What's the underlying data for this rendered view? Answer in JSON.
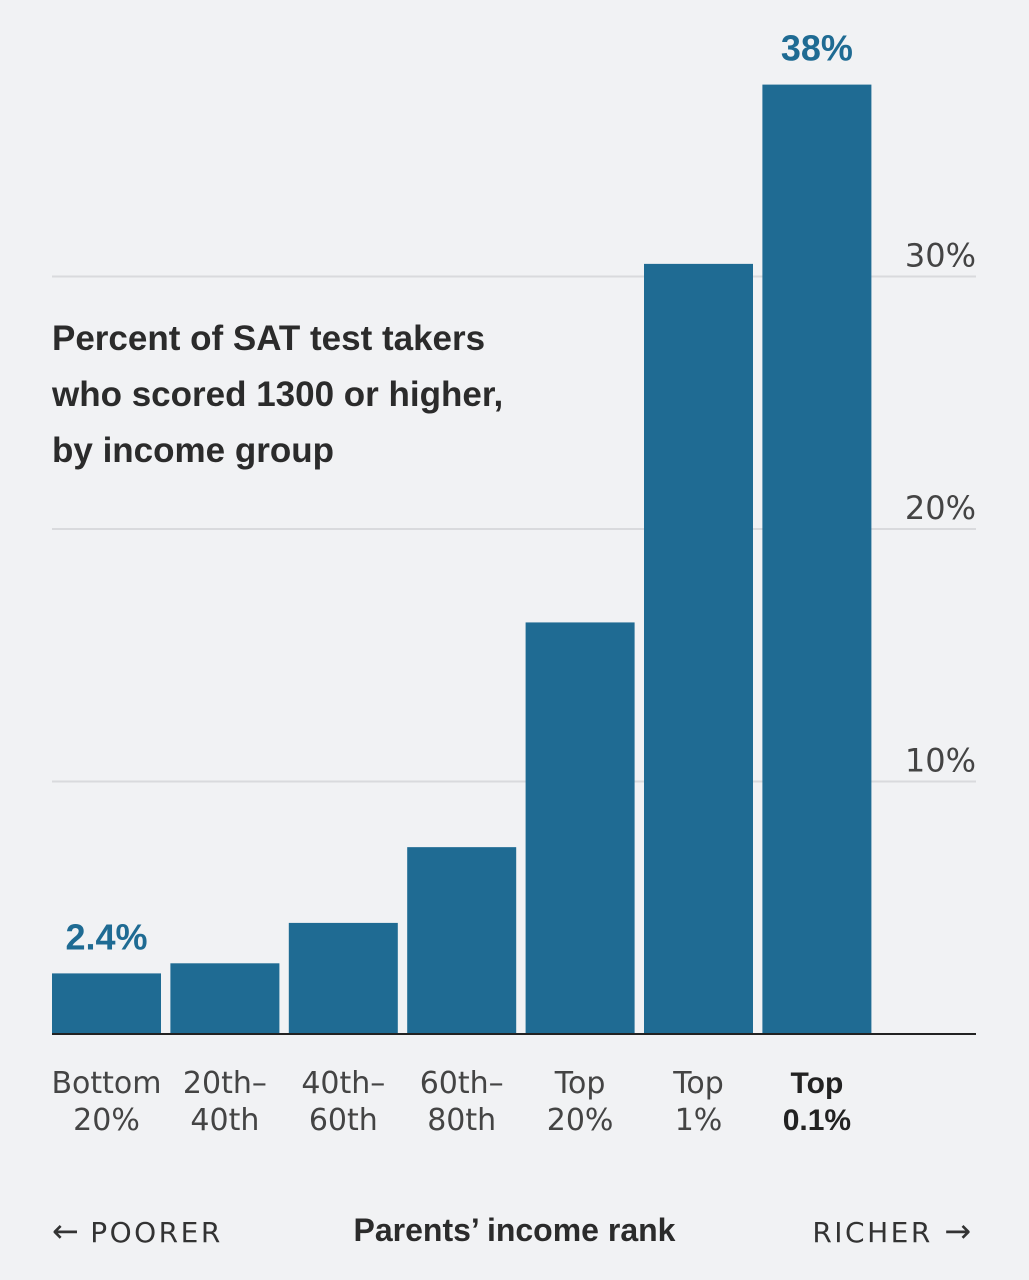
{
  "colors": {
    "bar": "#1f6b93",
    "grid": "#d9dadd",
    "axis": "#222222",
    "background": "#f1f2f4"
  },
  "chart_data": {
    "type": "bar",
    "title_lines": [
      "Percent of SAT test takers",
      "who scored 1300 or higher,",
      "by income group"
    ],
    "categories": [
      [
        "Bottom",
        "20%"
      ],
      [
        "20th–",
        "40th"
      ],
      [
        "40th–",
        "60th"
      ],
      [
        "60th–",
        "80th"
      ],
      [
        "Top",
        "20%"
      ],
      [
        "Top",
        "1%"
      ],
      [
        "Top",
        "0.1%"
      ]
    ],
    "highlight_category_index": 6,
    "values": [
      2.4,
      2.8,
      4.4,
      7.4,
      16.3,
      30.5,
      37.6
    ],
    "data_labels": [
      {
        "index": 0,
        "text": "2.4%"
      },
      {
        "index": 6,
        "text": "38%"
      }
    ],
    "yticks": [
      10,
      20,
      30
    ],
    "ytick_labels": [
      "10%",
      "20%",
      "30%"
    ],
    "ylim": [
      0,
      40
    ],
    "grid": true,
    "xlabel": "Parents’ income rank",
    "x_direction_left": "POORER",
    "x_direction_right": "RICHER",
    "arrow_left": "←",
    "arrow_right": "→"
  }
}
